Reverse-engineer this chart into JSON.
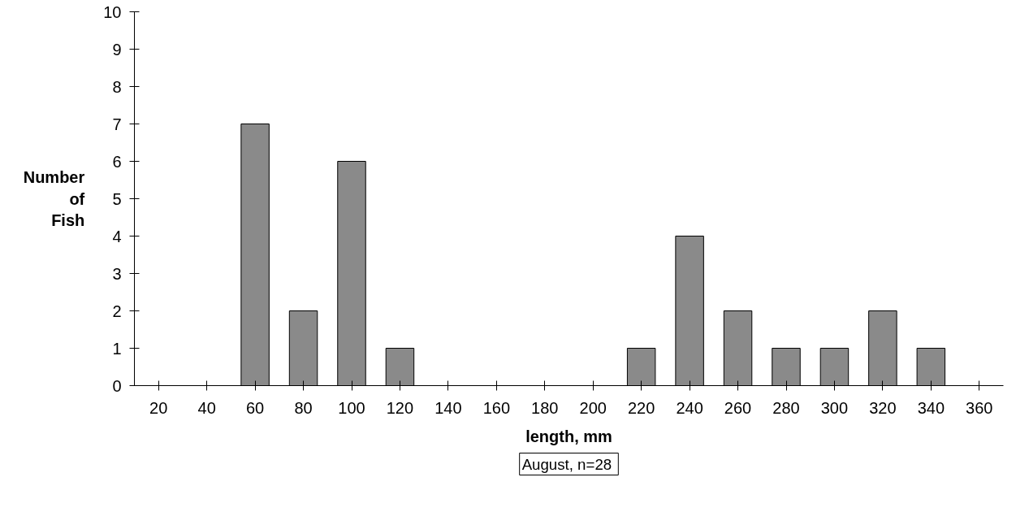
{
  "chart_data": {
    "type": "bar",
    "xlabel": "length, mm",
    "ylabel": "Number of Fish",
    "categories": [
      "20",
      "40",
      "60",
      "80",
      "100",
      "120",
      "140",
      "160",
      "180",
      "200",
      "220",
      "240",
      "260",
      "280",
      "300",
      "320",
      "340",
      "360"
    ],
    "values": [
      0,
      0,
      7,
      2,
      6,
      1,
      0,
      0,
      0,
      0,
      1,
      4,
      2,
      1,
      1,
      2,
      1,
      0
    ],
    "color": "#8a8a8a",
    "ylim": [
      0,
      10
    ],
    "yticks": [
      0,
      1,
      2,
      3,
      4,
      5,
      6,
      7,
      8,
      9,
      10
    ],
    "grid": false,
    "annotations": [
      "August,  n=28"
    ]
  }
}
